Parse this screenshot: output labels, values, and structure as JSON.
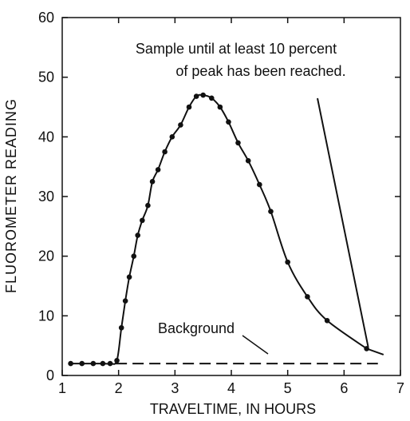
{
  "chart_data": {
    "type": "line",
    "xlabel": "TRAVELTIME, IN HOURS",
    "ylabel": "FLUOROMETER READING",
    "xlim": [
      1,
      7
    ],
    "ylim": [
      0,
      60
    ],
    "x_ticks": [
      1,
      2,
      3,
      4,
      5,
      6,
      7
    ],
    "y_ticks": [
      0,
      10,
      20,
      30,
      40,
      50,
      60
    ],
    "grid": false,
    "annotations": [
      "Sample until at least 10 percent",
      "of peak has been reached.",
      "Background"
    ],
    "series": [
      {
        "x": [
          1.15,
          1.35,
          1.55,
          1.72,
          1.85,
          1.97,
          2.05,
          2.12,
          2.19,
          2.27,
          2.34,
          2.42,
          2.52,
          2.6,
          2.7,
          2.82,
          2.95,
          3.1,
          3.25,
          3.38,
          3.5,
          3.65,
          3.8,
          3.95,
          4.12,
          4.3,
          4.5,
          4.7,
          5.0,
          5.35,
          5.7,
          6.4
        ],
        "y": [
          2,
          2,
          2,
          2,
          2,
          2.5,
          8,
          12.5,
          16.5,
          20,
          23.5,
          26,
          28.5,
          32.5,
          34.5,
          37.5,
          40,
          42,
          45,
          46.8,
          47,
          46.5,
          45,
          42.5,
          39,
          36,
          32,
          27.5,
          19,
          13.2,
          9.2,
          4.5
        ],
        "markers": true
      },
      {
        "x": [
          1.95,
          6.6
        ],
        "y": [
          2,
          2
        ],
        "style": "dashed"
      }
    ]
  }
}
